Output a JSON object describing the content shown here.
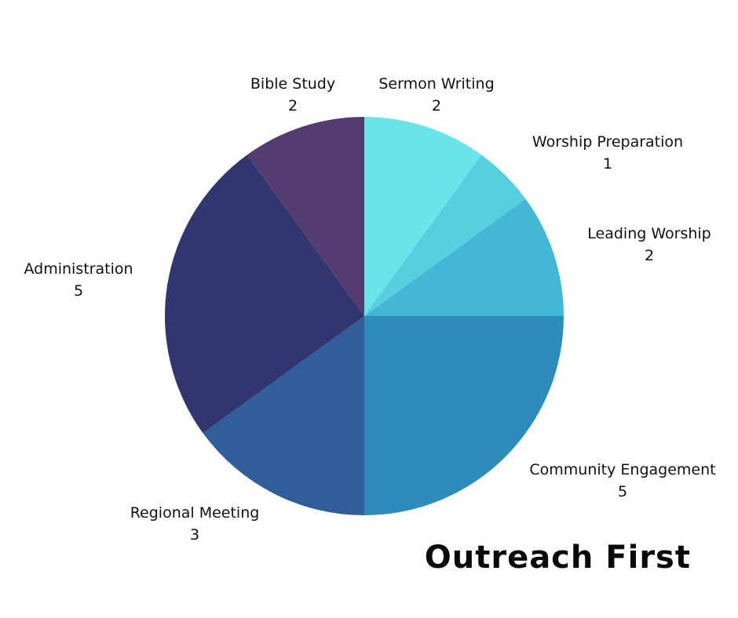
{
  "chart_data": {
    "type": "pie",
    "title": "Outreach First",
    "start": "top",
    "direction": "clockwise",
    "slices": [
      {
        "label": "Sermon Writing",
        "value": 2,
        "color": "#69E4E8"
      },
      {
        "label": "Worship Preparation",
        "value": 1,
        "color": "#56CFDF"
      },
      {
        "label": "Leading Worship",
        "value": 2,
        "color": "#43B7D6"
      },
      {
        "label": "Community Engagement",
        "value": 5,
        "color": "#2E8CBB"
      },
      {
        "label": "Regional Meeting",
        "value": 3,
        "color": "#2F5E9A"
      },
      {
        "label": "Administration",
        "value": 5,
        "color": "#31366E"
      },
      {
        "label": "Bible Study",
        "value": 2,
        "color": "#523C70"
      }
    ]
  }
}
